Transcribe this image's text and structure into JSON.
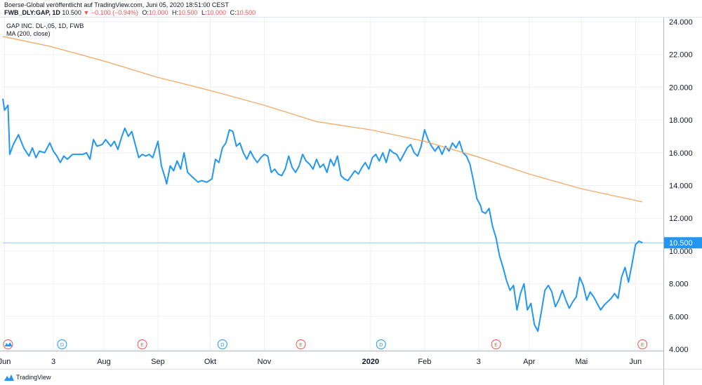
{
  "header": {
    "published_line": "Boerse-Global veröffentlicht auf TradingView.com, Juni 05, 2020 18:51:00 CEST",
    "symbol": "FWB_DLY:GAP, 1D",
    "last": "10.500",
    "change": "▼ −0.100 (−0.94%)",
    "o_label": "O:",
    "o_value": "10.000",
    "h_label": "H:",
    "h_value": "10.500",
    "l_label": "L:",
    "l_value": "10.000",
    "c_label": "C:",
    "c_value": "10.500"
  },
  "legend": {
    "title": "GAP INC. DL-,05, 1D, FWB",
    "ma": "MA (200, close)"
  },
  "footer": {
    "brand": "TradingView"
  },
  "colors": {
    "price": "#2196f3",
    "ma": "#f7a35c",
    "last_line": "#90caf9",
    "badge": "#2196f3",
    "dividend": "#2196f3",
    "earnings": "#ef5350",
    "grid": "#eef0f3"
  },
  "chart_data": {
    "type": "line",
    "y_range": [
      4,
      24
    ],
    "y_ticks": [
      "24.000",
      "22.000",
      "20.000",
      "18.000",
      "16.000",
      "14.000",
      "12.000",
      "10.000",
      "8.000",
      "6.000",
      "4.000"
    ],
    "y_tick_values": [
      24,
      22,
      20,
      18,
      16,
      14,
      12,
      10,
      8,
      6,
      4
    ],
    "x_range": [
      "2019-06-04",
      "2020-06-17"
    ],
    "x_ticks": [
      {
        "label": "Jun",
        "date": "2019-06-05"
      },
      {
        "label": "3",
        "date": "2019-07-03"
      },
      {
        "label": "Aug",
        "date": "2019-08-01"
      },
      {
        "label": "Sep",
        "date": "2019-09-01"
      },
      {
        "label": "Okt",
        "date": "2019-10-01"
      },
      {
        "label": "Nov",
        "date": "2019-11-01"
      },
      {
        "label": "2020",
        "date": "2020-01-01",
        "bold": true
      },
      {
        "label": "Feb",
        "date": "2020-02-01"
      },
      {
        "label": "3",
        "date": "2020-03-03"
      },
      {
        "label": "Apr",
        "date": "2020-04-01"
      },
      {
        "label": "Mai",
        "date": "2020-05-01"
      },
      {
        "label": "Jun",
        "date": "2020-06-01"
      }
    ],
    "last_price": 10.5,
    "last_price_label": "10.500",
    "markers": [
      {
        "type": "split",
        "label": "",
        "date": "2019-06-07"
      },
      {
        "type": "dividend",
        "label": "D",
        "date": "2019-07-08"
      },
      {
        "type": "earnings",
        "label": "E",
        "date": "2019-08-23"
      },
      {
        "type": "dividend",
        "label": "D",
        "date": "2019-10-08"
      },
      {
        "type": "earnings",
        "label": "E",
        "date": "2019-11-22"
      },
      {
        "type": "dividend",
        "label": "D",
        "date": "2020-01-07"
      },
      {
        "type": "earnings",
        "label": "E",
        "date": "2020-03-13"
      },
      {
        "type": "earnings",
        "label": "E",
        "date": "2020-06-05"
      }
    ],
    "series": [
      {
        "name": "GAP INC. DL-,05, 1D, FWB",
        "color": "#2196f3",
        "points": [
          [
            "2019-06-04",
            19.3
          ],
          [
            "2019-06-05",
            18.6
          ],
          [
            "2019-06-07",
            18.9
          ],
          [
            "2019-06-08",
            15.9
          ],
          [
            "2019-06-10",
            16.5
          ],
          [
            "2019-06-13",
            17.1
          ],
          [
            "2019-06-16",
            16.3
          ],
          [
            "2019-06-19",
            15.8
          ],
          [
            "2019-06-21",
            16.3
          ],
          [
            "2019-06-23",
            15.7
          ],
          [
            "2019-06-25",
            16.1
          ],
          [
            "2019-06-28",
            16.0
          ],
          [
            "2019-07-01",
            16.6
          ],
          [
            "2019-07-03",
            16.1
          ],
          [
            "2019-07-05",
            15.8
          ],
          [
            "2019-07-07",
            15.4
          ],
          [
            "2019-07-09",
            15.8
          ],
          [
            "2019-07-11",
            15.6
          ],
          [
            "2019-07-14",
            15.9
          ],
          [
            "2019-07-17",
            15.9
          ],
          [
            "2019-07-20",
            15.9
          ],
          [
            "2019-07-22",
            16.0
          ],
          [
            "2019-07-24",
            15.6
          ],
          [
            "2019-07-26",
            16.8
          ],
          [
            "2019-07-28",
            16.4
          ],
          [
            "2019-07-31",
            16.5
          ],
          [
            "2019-08-02",
            16.8
          ],
          [
            "2019-08-05",
            16.4
          ],
          [
            "2019-08-07",
            16.7
          ],
          [
            "2019-08-09",
            16.2
          ],
          [
            "2019-08-11",
            16.9
          ],
          [
            "2019-08-13",
            17.5
          ],
          [
            "2019-08-15",
            17.0
          ],
          [
            "2019-08-17",
            17.3
          ],
          [
            "2019-08-19",
            16.5
          ],
          [
            "2019-08-21",
            15.7
          ],
          [
            "2019-08-23",
            15.9
          ],
          [
            "2019-08-25",
            15.8
          ],
          [
            "2019-08-27",
            15.9
          ],
          [
            "2019-08-29",
            15.7
          ],
          [
            "2019-09-01",
            16.7
          ],
          [
            "2019-09-03",
            15.2
          ],
          [
            "2019-09-05",
            14.5
          ],
          [
            "2019-09-06",
            14.1
          ],
          [
            "2019-09-08",
            15.2
          ],
          [
            "2019-09-10",
            14.9
          ],
          [
            "2019-09-12",
            15.5
          ],
          [
            "2019-09-14",
            15.0
          ],
          [
            "2019-09-16",
            16.0
          ],
          [
            "2019-09-18",
            14.8
          ],
          [
            "2019-09-20",
            14.6
          ],
          [
            "2019-09-22",
            14.4
          ],
          [
            "2019-09-24",
            14.2
          ],
          [
            "2019-09-26",
            14.3
          ],
          [
            "2019-09-29",
            14.2
          ],
          [
            "2019-10-02",
            14.4
          ],
          [
            "2019-10-04",
            15.6
          ],
          [
            "2019-10-06",
            15.4
          ],
          [
            "2019-10-08",
            16.3
          ],
          [
            "2019-10-10",
            16.6
          ],
          [
            "2019-10-12",
            17.4
          ],
          [
            "2019-10-14",
            17.3
          ],
          [
            "2019-10-16",
            16.4
          ],
          [
            "2019-10-18",
            16.6
          ],
          [
            "2019-10-20",
            16.0
          ],
          [
            "2019-10-22",
            15.6
          ],
          [
            "2019-10-24",
            16.1
          ],
          [
            "2019-10-26",
            15.7
          ],
          [
            "2019-10-28",
            15.4
          ],
          [
            "2019-10-30",
            15.7
          ],
          [
            "2019-11-01",
            15.9
          ],
          [
            "2019-11-03",
            15.8
          ],
          [
            "2019-11-05",
            14.8
          ],
          [
            "2019-11-07",
            15.0
          ],
          [
            "2019-11-09",
            14.7
          ],
          [
            "2019-11-11",
            14.6
          ],
          [
            "2019-11-13",
            15.0
          ],
          [
            "2019-11-15",
            15.8
          ],
          [
            "2019-11-17",
            15.1
          ],
          [
            "2019-11-19",
            14.8
          ],
          [
            "2019-11-21",
            15.2
          ],
          [
            "2019-11-23",
            15.9
          ],
          [
            "2019-11-25",
            15.5
          ],
          [
            "2019-11-27",
            15.3
          ],
          [
            "2019-11-29",
            15.0
          ],
          [
            "2019-12-01",
            15.6
          ],
          [
            "2019-12-03",
            15.1
          ],
          [
            "2019-12-05",
            15.3
          ],
          [
            "2019-12-07",
            14.8
          ],
          [
            "2019-12-09",
            15.6
          ],
          [
            "2019-12-11",
            15.2
          ],
          [
            "2019-12-13",
            15.8
          ],
          [
            "2019-12-15",
            14.6
          ],
          [
            "2019-12-17",
            14.4
          ],
          [
            "2019-12-19",
            14.3
          ],
          [
            "2019-12-21",
            14.6
          ],
          [
            "2019-12-23",
            14.9
          ],
          [
            "2019-12-25",
            14.7
          ],
          [
            "2019-12-27",
            15.1
          ],
          [
            "2019-12-29",
            15.4
          ],
          [
            "2019-12-31",
            15.0
          ],
          [
            "2020-01-02",
            15.7
          ],
          [
            "2020-01-04",
            15.9
          ],
          [
            "2020-01-06",
            15.5
          ],
          [
            "2020-01-08",
            16.0
          ],
          [
            "2020-01-10",
            15.4
          ],
          [
            "2020-01-12",
            16.2
          ],
          [
            "2020-01-14",
            16.0
          ],
          [
            "2020-01-16",
            15.9
          ],
          [
            "2020-01-18",
            15.5
          ],
          [
            "2020-01-20",
            15.9
          ],
          [
            "2020-01-22",
            16.3
          ],
          [
            "2020-01-24",
            16.5
          ],
          [
            "2020-01-26",
            16.0
          ],
          [
            "2020-01-28",
            15.8
          ],
          [
            "2020-01-30",
            16.4
          ],
          [
            "2020-02-01",
            17.4
          ],
          [
            "2020-02-03",
            16.8
          ],
          [
            "2020-02-05",
            16.4
          ],
          [
            "2020-02-07",
            16.1
          ],
          [
            "2020-02-09",
            16.4
          ],
          [
            "2020-02-11",
            15.9
          ],
          [
            "2020-02-13",
            16.4
          ],
          [
            "2020-02-15",
            16.1
          ],
          [
            "2020-02-17",
            16.6
          ],
          [
            "2020-02-19",
            16.3
          ],
          [
            "2020-02-21",
            16.7
          ],
          [
            "2020-02-23",
            16.0
          ],
          [
            "2020-02-25",
            15.8
          ],
          [
            "2020-02-27",
            15.3
          ],
          [
            "2020-02-29",
            14.3
          ],
          [
            "2020-03-02",
            13.2
          ],
          [
            "2020-03-04",
            12.8
          ],
          [
            "2020-03-05",
            12.4
          ],
          [
            "2020-03-07",
            12.3
          ],
          [
            "2020-03-09",
            12.6
          ],
          [
            "2020-03-11",
            11.5
          ],
          [
            "2020-03-13",
            10.8
          ],
          [
            "2020-03-15",
            9.7
          ],
          [
            "2020-03-17",
            9.0
          ],
          [
            "2020-03-19",
            8.2
          ],
          [
            "2020-03-21",
            7.6
          ],
          [
            "2020-03-23",
            7.9
          ],
          [
            "2020-03-25",
            6.4
          ],
          [
            "2020-03-27",
            7.4
          ],
          [
            "2020-03-29",
            8.0
          ],
          [
            "2020-03-31",
            6.4
          ],
          [
            "2020-04-02",
            6.8
          ],
          [
            "2020-04-04",
            5.5
          ],
          [
            "2020-04-06",
            5.1
          ],
          [
            "2020-04-08",
            6.3
          ],
          [
            "2020-04-10",
            7.6
          ],
          [
            "2020-04-12",
            7.9
          ],
          [
            "2020-04-14",
            7.5
          ],
          [
            "2020-04-16",
            6.6
          ],
          [
            "2020-04-18",
            7.0
          ],
          [
            "2020-04-20",
            7.6
          ],
          [
            "2020-04-22",
            7.0
          ],
          [
            "2020-04-24",
            6.5
          ],
          [
            "2020-04-26",
            6.9
          ],
          [
            "2020-04-28",
            7.2
          ],
          [
            "2020-04-30",
            8.4
          ],
          [
            "2020-05-02",
            7.9
          ],
          [
            "2020-05-04",
            7.0
          ],
          [
            "2020-05-06",
            7.5
          ],
          [
            "2020-05-08",
            7.2
          ],
          [
            "2020-05-10",
            6.8
          ],
          [
            "2020-05-12",
            6.4
          ],
          [
            "2020-05-14",
            6.7
          ],
          [
            "2020-05-16",
            6.9
          ],
          [
            "2020-05-18",
            7.1
          ],
          [
            "2020-05-20",
            7.4
          ],
          [
            "2020-05-22",
            7.1
          ],
          [
            "2020-05-24",
            8.4
          ],
          [
            "2020-05-26",
            9.0
          ],
          [
            "2020-05-28",
            8.1
          ],
          [
            "2020-05-30",
            9.2
          ],
          [
            "2020-06-01",
            10.4
          ],
          [
            "2020-06-03",
            10.6
          ],
          [
            "2020-06-05",
            10.5
          ]
        ]
      },
      {
        "name": "MA (200, close)",
        "color": "#f7a35c",
        "points": [
          [
            "2019-06-04",
            23.1
          ],
          [
            "2019-07-01",
            22.5
          ],
          [
            "2019-08-01",
            21.6
          ],
          [
            "2019-09-01",
            20.6
          ],
          [
            "2019-10-01",
            19.8
          ],
          [
            "2019-11-01",
            18.9
          ],
          [
            "2019-12-01",
            17.9
          ],
          [
            "2020-01-01",
            17.4
          ],
          [
            "2020-02-01",
            16.7
          ],
          [
            "2020-03-01",
            15.8
          ],
          [
            "2020-04-01",
            14.7
          ],
          [
            "2020-05-01",
            13.8
          ],
          [
            "2020-06-05",
            13.0
          ]
        ]
      }
    ]
  }
}
